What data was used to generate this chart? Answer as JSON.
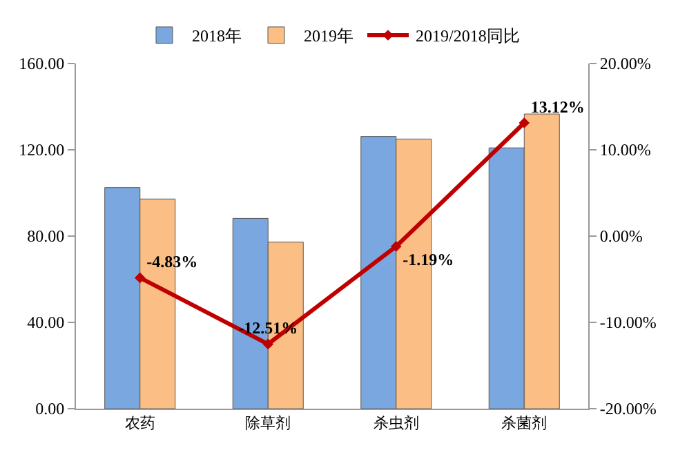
{
  "chart_data": {
    "type": "bar",
    "categories": [
      "农药",
      "除草剂",
      "杀虫剂",
      "杀菌剂"
    ],
    "series": [
      {
        "name": "2018年",
        "color": "#7ba7e0",
        "values": [
          102.5,
          88.2,
          126.2,
          120.9
        ]
      },
      {
        "name": "2019年",
        "color": "#fbbf85",
        "values": [
          97.2,
          77.2,
          125.0,
          136.6
        ]
      },
      {
        "name": "2019/2018同比",
        "type": "line",
        "axis": "y2",
        "color": "#c00000",
        "values": [
          -4.83,
          -12.51,
          -1.19,
          13.12
        ],
        "value_labels": [
          "-4.83%",
          "-12.51%",
          "-1.19%",
          "13.12%"
        ],
        "marker": "diamond"
      }
    ],
    "ylim": [
      0,
      160
    ],
    "yticks": [
      {
        "value": 0,
        "label": "0.00"
      },
      {
        "value": 40,
        "label": "40.00"
      },
      {
        "value": 80,
        "label": "80.00"
      },
      {
        "value": 120,
        "label": "120.00"
      },
      {
        "value": 160,
        "label": "160.00"
      }
    ],
    "y2lim": [
      -20,
      20
    ],
    "y2ticks": [
      {
        "value": -20,
        "label": "-20.00%"
      },
      {
        "value": -10,
        "label": "-10.00%"
      },
      {
        "value": 0,
        "label": "0.00%"
      },
      {
        "value": 10,
        "label": "10.00%"
      },
      {
        "value": 20,
        "label": "20.00%"
      }
    ],
    "legend": "top"
  }
}
